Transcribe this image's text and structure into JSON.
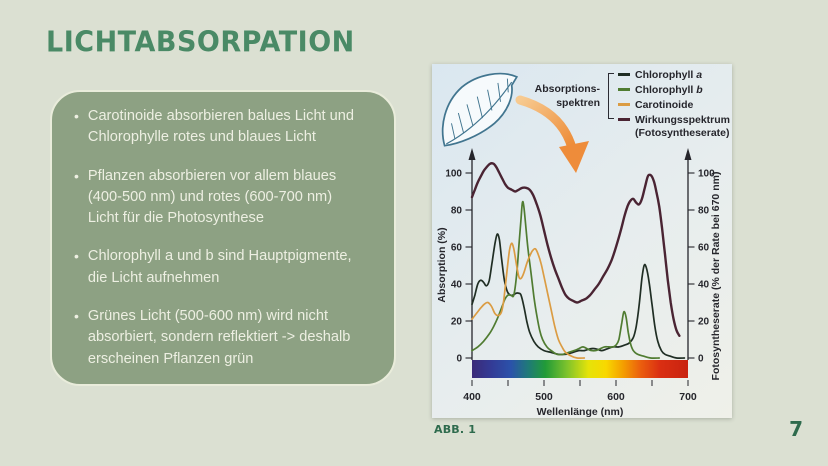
{
  "slide": {
    "title": "LICHTABSORPATION",
    "page_number": "7",
    "figure_caption": "ABB. 1",
    "bullets": [
      "Carotinoide absorbieren balues Licht und\nChlorophylle rotes und blaues Licht",
      "Pflanzen absorbieren vor allem blaues\n(400-500 nm) und rotes (600-700 nm)\nLicht für die Photosynthese",
      "Chlorophyll a und b sind Hauptpigmente,\ndie Licht aufnehmen",
      "Grünes Licht (500-600 nm) wird nicht\nabsorbiert, sondern reflektiert -> deshalb\nerscheinen Pflanzen grün"
    ],
    "bullet_marker": "•",
    "colors": {
      "background": "#dbe0d2",
      "title_green": "#4a8a66",
      "card_fill": "#8da183",
      "card_text": "#edefe2",
      "caption_green": "#2e6b4d"
    }
  },
  "figure": {
    "legend": {
      "group_label_line1": "Absorptions-",
      "group_label_line2": "spektren",
      "entries": [
        {
          "text": "Chlorophyll",
          "italic": "a",
          "line2": ""
        },
        {
          "text": "Chlorophyll",
          "italic": "b",
          "line2": ""
        },
        {
          "text": "Carotinoide",
          "italic": "",
          "line2": ""
        },
        {
          "text": "Wirkungsspektrum",
          "italic": "",
          "line2": "(Fotosyntheserate)"
        }
      ]
    }
  },
  "chart_data": {
    "type": "line",
    "title": "",
    "xlabel": "Wellenlänge (nm)",
    "ylabel_left": "Absorption (%)",
    "ylabel_right": "Fotosyntheserate (% der Rate bei 670 nm)",
    "xlim": [
      400,
      700
    ],
    "ylim": [
      0,
      108
    ],
    "x_ticks": [
      400,
      500,
      600,
      700
    ],
    "x_tick_marks": [
      400,
      450,
      500,
      550,
      600,
      650,
      700
    ],
    "y_ticks": [
      0,
      20,
      40,
      60,
      80,
      100
    ],
    "grid": false,
    "legend_position": "top-right",
    "series": [
      {
        "name": "Chlorophyll a",
        "color": "#202e24",
        "stroke_width": 1.7,
        "points": [
          [
            400,
            29
          ],
          [
            404,
            34
          ],
          [
            408,
            40
          ],
          [
            412,
            42
          ],
          [
            416,
            41
          ],
          [
            420,
            39
          ],
          [
            424,
            42
          ],
          [
            428,
            52
          ],
          [
            432,
            62
          ],
          [
            435,
            67
          ],
          [
            438,
            64
          ],
          [
            441,
            54
          ],
          [
            445,
            42
          ],
          [
            449,
            36
          ],
          [
            453,
            34
          ],
          [
            457,
            34
          ],
          [
            461,
            35
          ],
          [
            465,
            35
          ],
          [
            468,
            34
          ],
          [
            472,
            28
          ],
          [
            476,
            20
          ],
          [
            480,
            14
          ],
          [
            486,
            9
          ],
          [
            492,
            6
          ],
          [
            500,
            4
          ],
          [
            510,
            3
          ],
          [
            520,
            2
          ],
          [
            530,
            2
          ],
          [
            540,
            3
          ],
          [
            548,
            4
          ],
          [
            556,
            4
          ],
          [
            564,
            5
          ],
          [
            572,
            5
          ],
          [
            580,
            4
          ],
          [
            588,
            5
          ],
          [
            596,
            6
          ],
          [
            604,
            6
          ],
          [
            612,
            7
          ],
          [
            618,
            8
          ],
          [
            624,
            11
          ],
          [
            628,
            17
          ],
          [
            632,
            28
          ],
          [
            636,
            43
          ],
          [
            639,
            50
          ],
          [
            642,
            49
          ],
          [
            646,
            41
          ],
          [
            650,
            29
          ],
          [
            654,
            17
          ],
          [
            658,
            9
          ],
          [
            663,
            4
          ],
          [
            668,
            2
          ],
          [
            675,
            1
          ],
          [
            684,
            0
          ],
          [
            695,
            0
          ]
        ]
      },
      {
        "name": "Chlorophyll b",
        "color": "#507c31",
        "stroke_width": 1.7,
        "points": [
          [
            400,
            4
          ],
          [
            408,
            6
          ],
          [
            416,
            9
          ],
          [
            424,
            13
          ],
          [
            430,
            17
          ],
          [
            436,
            22
          ],
          [
            442,
            28
          ],
          [
            446,
            32
          ],
          [
            450,
            34
          ],
          [
            454,
            34
          ],
          [
            458,
            34
          ],
          [
            462,
            45
          ],
          [
            465,
            60
          ],
          [
            468,
            75
          ],
          [
            470,
            84
          ],
          [
            472,
            82
          ],
          [
            475,
            70
          ],
          [
            478,
            58
          ],
          [
            482,
            46
          ],
          [
            486,
            33
          ],
          [
            490,
            23
          ],
          [
            494,
            15
          ],
          [
            498,
            10
          ],
          [
            504,
            6
          ],
          [
            510,
            4
          ],
          [
            518,
            2
          ],
          [
            526,
            2
          ],
          [
            534,
            3
          ],
          [
            542,
            4
          ],
          [
            548,
            5
          ],
          [
            554,
            6
          ],
          [
            560,
            5
          ],
          [
            566,
            4
          ],
          [
            572,
            4
          ],
          [
            578,
            5
          ],
          [
            584,
            6
          ],
          [
            590,
            6
          ],
          [
            596,
            6
          ],
          [
            600,
            7
          ],
          [
            604,
            10
          ],
          [
            608,
            19
          ],
          [
            611,
            25
          ],
          [
            614,
            22
          ],
          [
            617,
            14
          ],
          [
            620,
            8
          ],
          [
            624,
            4
          ],
          [
            630,
            2
          ],
          [
            638,
            1
          ],
          [
            648,
            0
          ],
          [
            660,
            0
          ]
        ]
      },
      {
        "name": "Carotinoide",
        "color": "#db9c43",
        "stroke_width": 1.7,
        "points": [
          [
            400,
            21
          ],
          [
            406,
            24
          ],
          [
            412,
            27
          ],
          [
            417,
            29
          ],
          [
            422,
            30
          ],
          [
            427,
            28
          ],
          [
            432,
            24
          ],
          [
            437,
            23
          ],
          [
            441,
            25
          ],
          [
            444,
            31
          ],
          [
            448,
            45
          ],
          [
            452,
            58
          ],
          [
            455,
            62
          ],
          [
            458,
            59
          ],
          [
            462,
            50
          ],
          [
            465,
            44
          ],
          [
            468,
            43
          ],
          [
            472,
            46
          ],
          [
            476,
            51
          ],
          [
            480,
            55
          ],
          [
            484,
            58
          ],
          [
            488,
            59
          ],
          [
            492,
            56
          ],
          [
            496,
            51
          ],
          [
            500,
            44
          ],
          [
            505,
            35
          ],
          [
            510,
            26
          ],
          [
            515,
            17
          ],
          [
            520,
            10
          ],
          [
            525,
            6
          ],
          [
            530,
            3
          ],
          [
            538,
            1
          ],
          [
            546,
            0
          ],
          [
            556,
            0
          ]
        ]
      },
      {
        "name": "Wirkungsspektrum (Fotosyntheserate)",
        "color": "#4a2433",
        "stroke_width": 2.4,
        "points": [
          [
            400,
            87
          ],
          [
            404,
            91
          ],
          [
            408,
            95
          ],
          [
            412,
            98
          ],
          [
            416,
            101
          ],
          [
            420,
            103
          ],
          [
            425,
            105
          ],
          [
            430,
            105
          ],
          [
            434,
            103
          ],
          [
            438,
            100
          ],
          [
            442,
            97
          ],
          [
            446,
            94
          ],
          [
            450,
            92
          ],
          [
            455,
            91
          ],
          [
            460,
            90
          ],
          [
            465,
            91
          ],
          [
            470,
            92
          ],
          [
            475,
            92
          ],
          [
            480,
            91
          ],
          [
            485,
            88
          ],
          [
            490,
            83
          ],
          [
            495,
            77
          ],
          [
            500,
            69
          ],
          [
            505,
            61
          ],
          [
            510,
            54
          ],
          [
            515,
            48
          ],
          [
            520,
            43
          ],
          [
            525,
            38
          ],
          [
            530,
            34
          ],
          [
            535,
            32
          ],
          [
            540,
            31
          ],
          [
            546,
            30
          ],
          [
            552,
            31
          ],
          [
            558,
            32
          ],
          [
            564,
            34
          ],
          [
            570,
            37
          ],
          [
            576,
            40
          ],
          [
            582,
            44
          ],
          [
            588,
            48
          ],
          [
            594,
            53
          ],
          [
            600,
            60
          ],
          [
            606,
            68
          ],
          [
            612,
            77
          ],
          [
            616,
            82
          ],
          [
            620,
            85
          ],
          [
            624,
            86
          ],
          [
            628,
            84
          ],
          [
            632,
            83
          ],
          [
            636,
            86
          ],
          [
            640,
            92
          ],
          [
            644,
            98
          ],
          [
            647,
            99
          ],
          [
            650,
            98
          ],
          [
            653,
            95
          ],
          [
            656,
            90
          ],
          [
            660,
            82
          ],
          [
            664,
            70
          ],
          [
            668,
            56
          ],
          [
            672,
            42
          ],
          [
            676,
            30
          ],
          [
            680,
            21
          ],
          [
            684,
            15
          ],
          [
            688,
            12
          ]
        ]
      }
    ],
    "spectrum_bar": {
      "stops": [
        {
          "offset": 0.0,
          "color": "#3b2a78"
        },
        {
          "offset": 0.09,
          "color": "#333b96"
        },
        {
          "offset": 0.18,
          "color": "#2b52aa"
        },
        {
          "offset": 0.26,
          "color": "#1f7a78"
        },
        {
          "offset": 0.34,
          "color": "#219b38"
        },
        {
          "offset": 0.44,
          "color": "#7ec32c"
        },
        {
          "offset": 0.54,
          "color": "#e6e309"
        },
        {
          "offset": 0.62,
          "color": "#f8d800"
        },
        {
          "offset": 0.7,
          "color": "#f49e00"
        },
        {
          "offset": 0.78,
          "color": "#eb5f0e"
        },
        {
          "offset": 0.87,
          "color": "#da2f12"
        },
        {
          "offset": 1.0,
          "color": "#c92310"
        }
      ]
    }
  }
}
